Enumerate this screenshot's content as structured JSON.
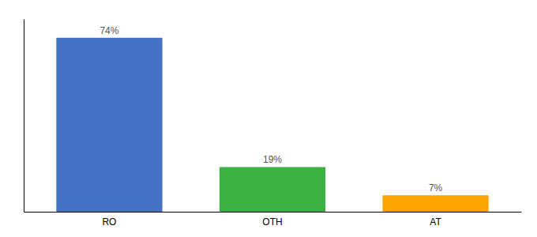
{
  "chart_data": {
    "type": "bar",
    "categories": [
      "RO",
      "OTH",
      "AT"
    ],
    "values": [
      74,
      19,
      7
    ],
    "value_labels": [
      "74%",
      "19%",
      "7%"
    ],
    "data_labels": true,
    "colors": [
      "#4472C4",
      "#3BB143",
      "#FFA500"
    ],
    "ylim": [
      0,
      82
    ],
    "tick_labels": "x"
  }
}
